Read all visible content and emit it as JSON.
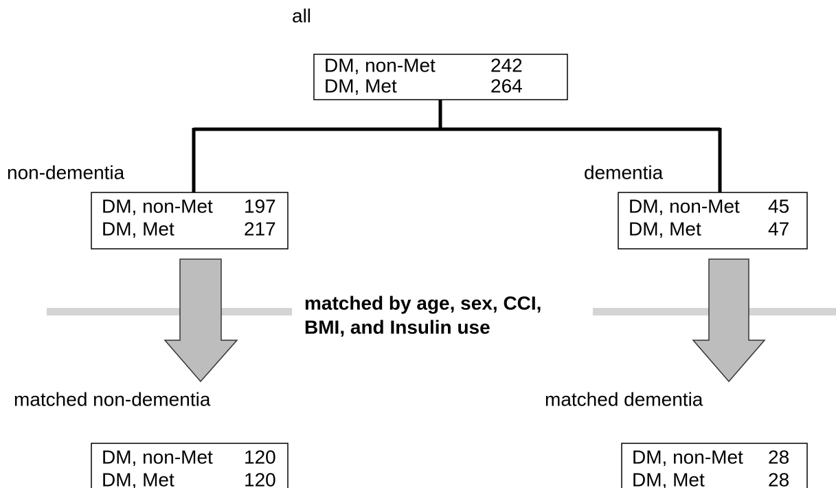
{
  "nodes": [
    {
      "label": "all",
      "rows": [
        [
          "DM, non-Met",
          242
        ],
        [
          "DM, Met",
          264
        ]
      ]
    },
    {
      "label": "non-dementia",
      "rows": [
        [
          "DM, non-Met",
          197
        ],
        [
          "DM, Met",
          217
        ]
      ]
    },
    {
      "label": "dementia",
      "rows": [
        [
          "DM, non-Met",
          45
        ],
        [
          "DM, Met",
          47
        ]
      ]
    },
    {
      "label": "matched non-dementia",
      "rows": [
        [
          "DM, non-Met",
          120
        ],
        [
          "DM, Met",
          120
        ]
      ]
    },
    {
      "label": "matched dementia",
      "rows": [
        [
          "DM, non-Met",
          28
        ],
        [
          "DM, Met",
          28
        ]
      ]
    }
  ],
  "matching_note": [
    "matched by age, sex, CCI,",
    "BMI, and Insulin use"
  ]
}
